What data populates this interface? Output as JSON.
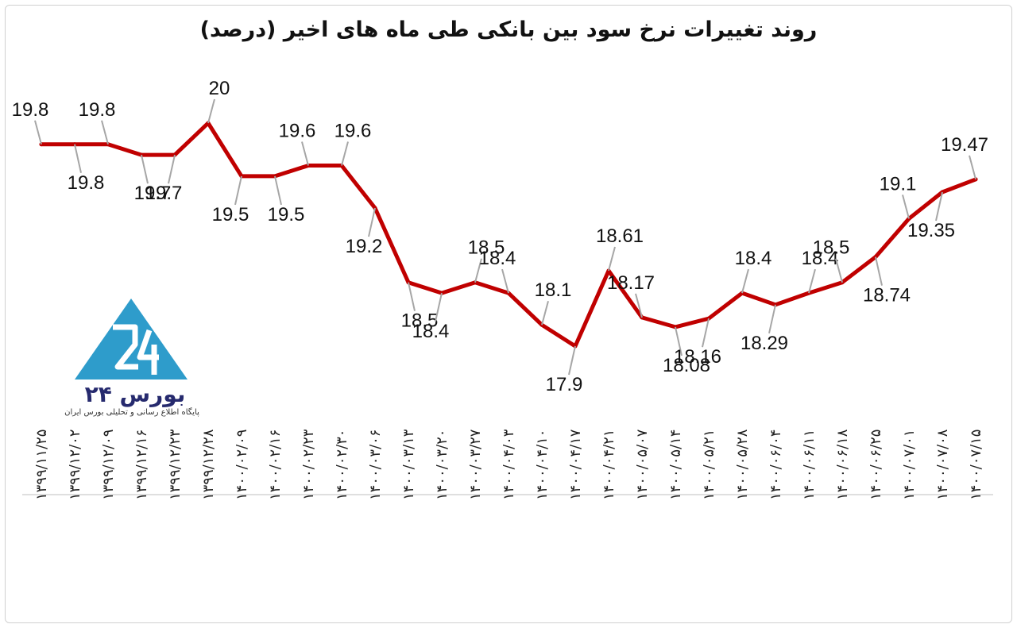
{
  "chart_data": {
    "type": "line",
    "title": "روند تغییرات نرخ سود بین بانکی طی ماه های اخیر (درصد)",
    "xlabel": "",
    "ylabel": "",
    "categories": [
      "۱۳۹۹/۱۱/۲۵",
      "۱۳۹۹/۱۲/۰۲",
      "۱۳۹۹/۱۲/۰۹",
      "۱۳۹۹/۱۲/۱۶",
      "۱۳۹۹/۱۲/۲۳",
      "۱۳۹۹/۱۲/۲۸",
      "۱۴۰۰/۰۲/۰۹",
      "۱۴۰۰/۰۲/۱۶",
      "۱۴۰۰/۰۲/۲۳",
      "۱۴۰۰/۰۲/۳۰",
      "۱۴۰۰/۰۳/۰۶",
      "۱۴۰۰/۰۳/۱۳",
      "۱۴۰۰/۰۳/۲۰",
      "۱۴۰۰/۰۳/۲۷",
      "۱۴۰۰/۰۴/۰۳",
      "۱۴۰۰/۰۴/۱۰",
      "۱۴۰۰/۰۴/۱۷",
      "۱۴۰۰/۰۴/۲۱",
      "۱۴۰۰/۰۵/۰۷",
      "۱۴۰۰/۰۵/۱۴",
      "۱۴۰۰/۰۵/۲۱",
      "۱۴۰۰/۰۵/۲۸",
      "۱۴۰۰/۰۶/۰۴",
      "۱۴۰۰/۰۶/۱۱",
      "۱۴۰۰/۰۶/۱۸",
      "۱۴۰۰/۰۶/۲۵",
      "۱۴۰۰/۰۷/۰۱",
      "۱۴۰۰/۰۷/۰۸",
      "۱۴۰۰/۰۷/۱۵"
    ],
    "values": [
      19.8,
      19.8,
      19.8,
      19.7,
      19.7,
      20,
      19.5,
      19.5,
      19.6,
      19.6,
      19.2,
      18.5,
      18.4,
      18.5,
      18.4,
      18.1,
      17.9,
      18.61,
      18.17,
      18.08,
      18.16,
      18.4,
      18.29,
      18.4,
      18.5,
      18.74,
      19.1,
      19.35,
      19.47
    ],
    "data_labels": [
      "19.8",
      "19.8",
      "19.8",
      "19.7",
      "19.7",
      "20",
      "19.5",
      "19.5",
      "19.6",
      "19.6",
      "19.2",
      "18.5",
      "18.4",
      "18.5",
      "18.4",
      "18.1",
      "17.9",
      "18.61",
      "18.17",
      "18.08",
      "18.16",
      "18.4",
      "18.29",
      "18.4",
      "18.5",
      "18.74",
      "19.1",
      "19.35",
      "19.47"
    ],
    "grid": false,
    "legend": "none",
    "line_color": "#c00000",
    "leader_color": "#a6a6a6"
  },
  "logo": {
    "name": "بورس ۲۴",
    "tagline": "پایگاه اطلاع رسانی و تحلیلی بورس ایران",
    "color": "#2e9ccb"
  }
}
